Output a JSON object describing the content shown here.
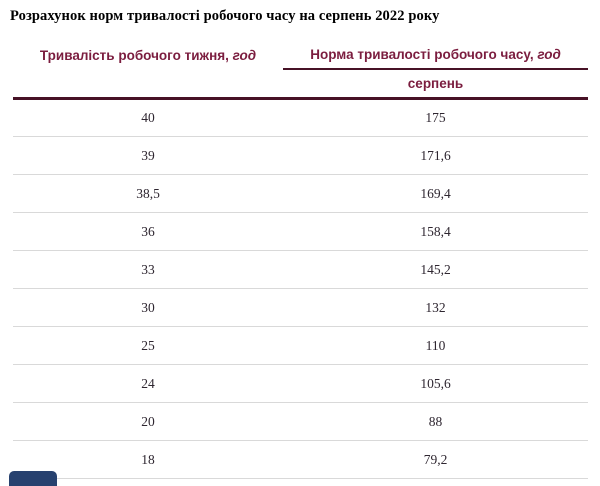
{
  "page": {
    "title": "Розрахунок норм тривалості робочого часу на серпень 2022 року"
  },
  "table": {
    "col1_header_label": "Тривалість робочого тижня, ",
    "col1_header_unit": "год",
    "col2_header_label": "Норма тривалості робочого часу, ",
    "col2_header_unit": "год",
    "subheader_month": "серпень",
    "rows": [
      {
        "week": "40",
        "norm": "175"
      },
      {
        "week": "39",
        "norm": "171,6"
      },
      {
        "week": "38,5",
        "norm": "169,4"
      },
      {
        "week": "36",
        "norm": "158,4"
      },
      {
        "week": "33",
        "norm": "145,2"
      },
      {
        "week": "30",
        "norm": "132"
      },
      {
        "week": "25",
        "norm": "110"
      },
      {
        "week": "24",
        "norm": "105,6"
      },
      {
        "week": "20",
        "norm": "88"
      },
      {
        "week": "18",
        "norm": "79,2"
      }
    ]
  },
  "icons": {
    "chat_widget": "chat-widget-button"
  },
  "colors": {
    "accent": "#7b1d3f",
    "dark-line": "#471226",
    "row-line": "#d9d9d9",
    "text": "#2e2630",
    "widget-blue": "#27416f"
  }
}
